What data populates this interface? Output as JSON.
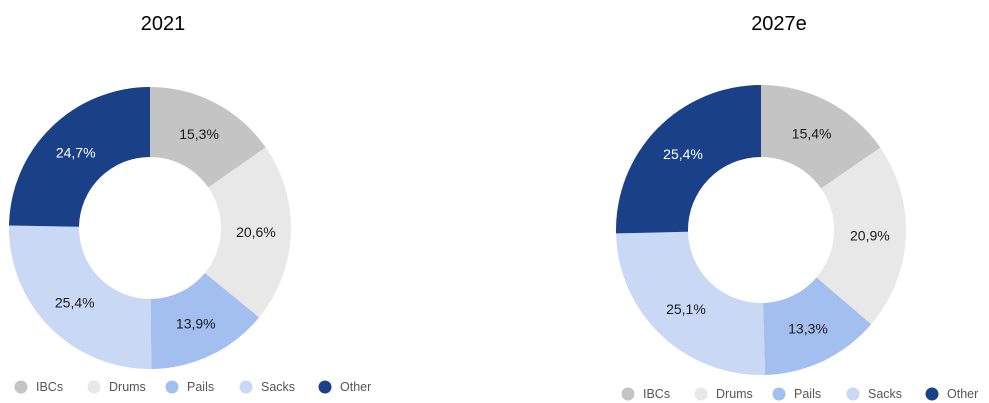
{
  "chart_data": [
    {
      "type": "pie",
      "title": "2021",
      "categories": [
        "IBCs",
        "Drums",
        "Pails",
        "Sacks",
        "Other"
      ],
      "values": [
        15.3,
        20.6,
        13.9,
        25.4,
        24.7
      ],
      "value_labels": [
        "15,3%",
        "20,6%",
        "13,9%",
        "25,4%",
        "24,7%"
      ],
      "legend_labels": [
        "IBCs",
        "Drums",
        "Pails",
        "Sacks",
        "Other"
      ],
      "donut": true,
      "legend_position": "bottom"
    },
    {
      "type": "pie",
      "title": "2027e",
      "categories": [
        "IBCs",
        "Drums",
        "Pails",
        "Sacks",
        "Other"
      ],
      "values": [
        15.4,
        20.9,
        13.3,
        25.1,
        25.4
      ],
      "value_labels": [
        "15,4%",
        "20,9%",
        "13,3%",
        "25,1%",
        "25,4%"
      ],
      "legend_labels": [
        "IBCs",
        "Drums",
        "Pails",
        "Sacks",
        "Other"
      ],
      "donut": true,
      "legend_position": "bottom"
    }
  ],
  "colors": {
    "IBCs": "#c4c4c4",
    "Drums": "#e8e8e8",
    "Pails": "#a2bff0",
    "Sacks": "#c9d8f5",
    "Other": "#1a4188"
  },
  "label_colors": {
    "IBCs": "#1a1a1a",
    "Drums": "#1a1a1a",
    "Pails": "#1a1a1a",
    "Sacks": "#1a1a1a",
    "Other": "#ffffff"
  }
}
